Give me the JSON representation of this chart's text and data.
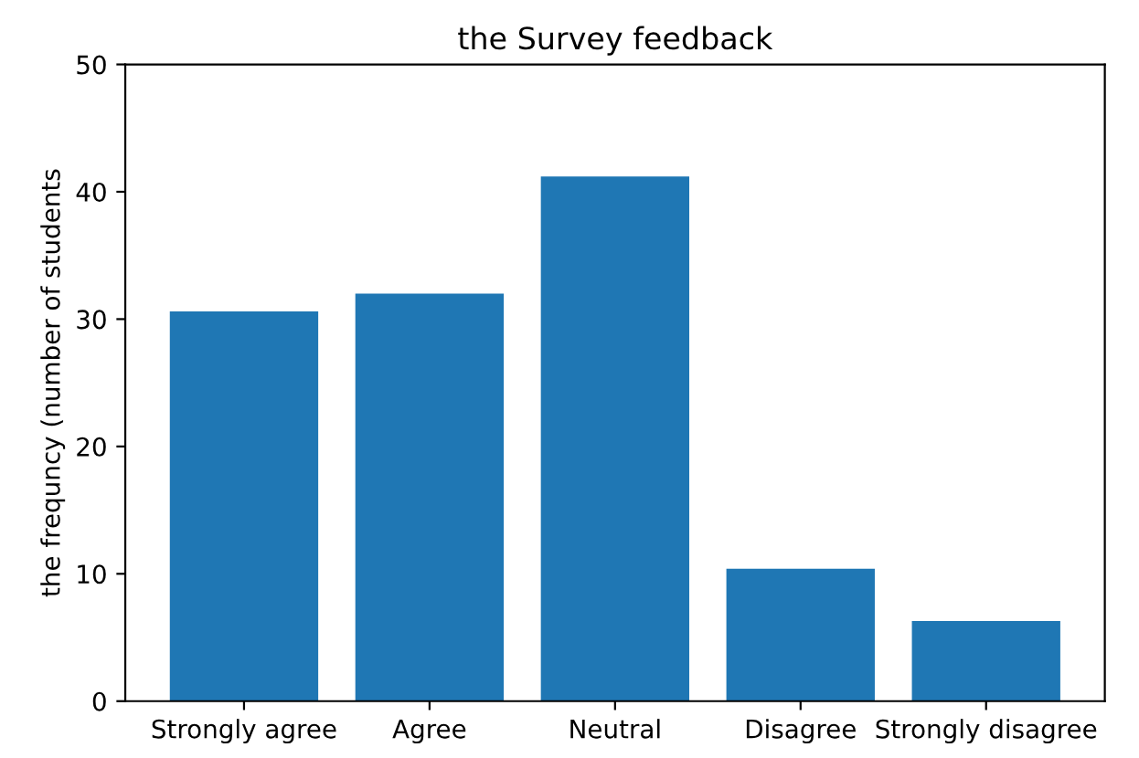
{
  "chart_data": {
    "type": "bar",
    "title": "the Survey feedback",
    "ylabel": "the frequncy (number of students",
    "categories": [
      "Strongly agree",
      "Agree",
      "Neutral",
      "Disagree",
      "Strongly disagree"
    ],
    "values": [
      30.6,
      32,
      41.2,
      10.4,
      6.3
    ],
    "color": "#1f77b4",
    "ylim": [
      0,
      50
    ],
    "yticks": [
      0,
      10,
      20,
      30,
      40,
      50
    ],
    "grid": false
  }
}
